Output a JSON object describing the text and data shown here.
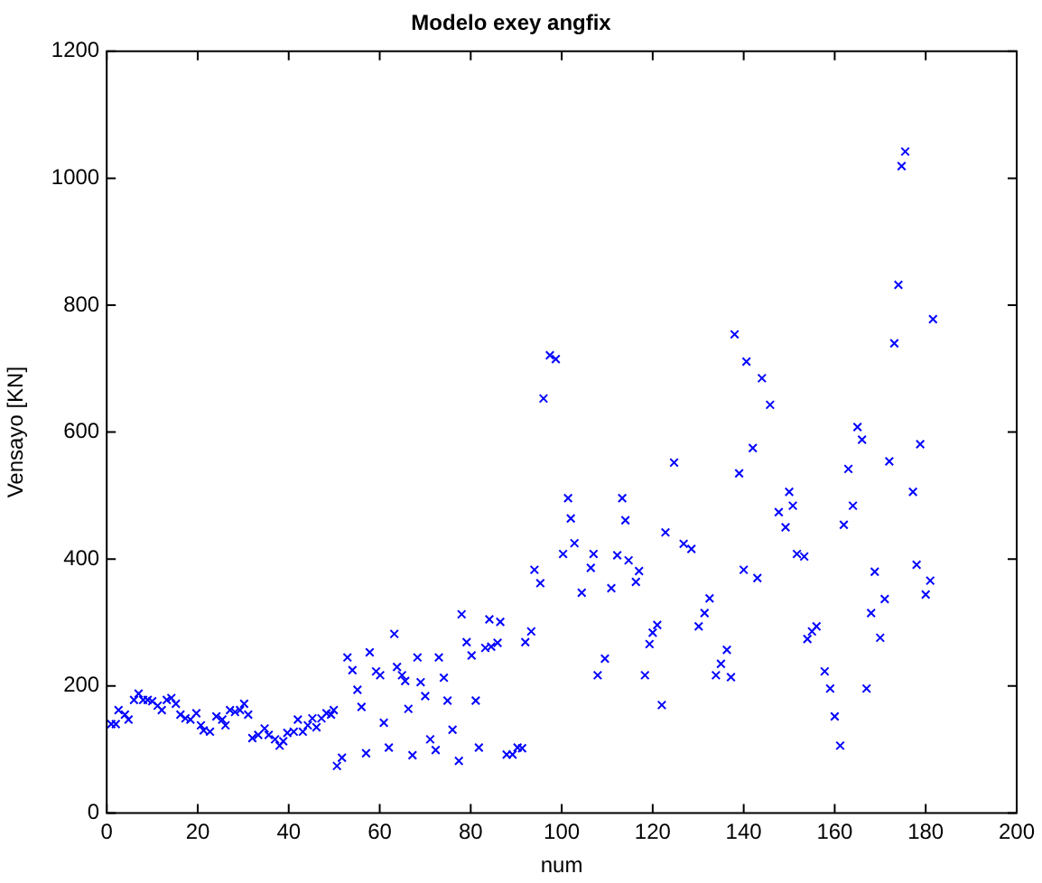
{
  "chart_data": {
    "type": "scatter",
    "title": "Modelo exey angfix",
    "xlabel": "num",
    "ylabel": "Vensayo [KN]",
    "xlim": [
      0,
      200
    ],
    "xticks": [
      0,
      20,
      40,
      60,
      80,
      100,
      120,
      140,
      160,
      180,
      200
    ],
    "ylim": [
      0,
      1200
    ],
    "yticks": [
      0,
      200,
      400,
      600,
      800,
      1000,
      1200
    ],
    "grid": false,
    "marker": "cross",
    "series": [
      {
        "color": "#0000ff",
        "x": [
          1,
          2,
          2.6,
          4,
          4.8,
          6,
          7,
          8,
          9,
          10,
          11.2,
          12.1,
          13.2,
          14.2,
          15.2,
          16.2,
          17.3,
          18.4,
          19.7,
          20.7,
          21.3,
          22.7,
          24.1,
          25.4,
          26.1,
          27.1,
          28.2,
          29.3,
          30.2,
          31.1,
          32,
          33.3,
          34.7,
          35.6,
          37,
          38,
          38.8,
          39.7,
          41.1,
          42,
          43.1,
          44.2,
          45.2,
          46.1,
          47.2,
          48.3,
          49.3,
          49.9,
          50.6,
          51.7,
          52.9,
          54,
          55.1,
          56,
          57,
          57.8,
          59.2,
          60.1,
          60.9,
          62,
          63.2,
          63.8,
          64.9,
          65.6,
          66.3,
          67.2,
          68.3,
          69,
          70,
          71.1,
          72.3,
          73,
          74.1,
          74.9,
          76,
          77.4,
          78,
          79.1,
          80.2,
          81.1,
          81.8,
          83.2,
          84.1,
          84.5,
          85.9,
          86.5,
          87.9,
          89.2,
          90.3,
          91.3,
          92,
          93.3,
          94,
          95.3,
          96,
          97.4,
          98.7,
          100.3,
          101.4,
          102,
          102.8,
          104.4,
          106.4,
          107,
          107.9,
          109.5,
          110.9,
          112.2,
          113.3,
          114,
          114.7,
          116.3,
          117,
          118.3,
          119.3,
          120,
          121,
          122,
          122.8,
          124.7,
          126.8,
          128.5,
          130.1,
          131.4,
          132.5,
          133.9,
          135,
          136.3,
          137.2,
          138,
          139,
          140,
          140.6,
          142,
          143,
          144,
          145.8,
          147.7,
          149.2,
          150,
          150.8,
          151.7,
          153.3,
          154,
          155,
          156,
          157.8,
          159,
          160,
          161.2,
          162,
          163,
          164,
          165,
          166,
          167,
          168,
          168.8,
          170,
          171,
          172,
          173.1,
          174,
          174.7,
          175.5,
          177.2,
          178,
          178.8,
          180,
          181,
          181.6
        ],
        "values": [
          140,
          140,
          162,
          155,
          147,
          178,
          188,
          178,
          178,
          176,
          169,
          162,
          178,
          181,
          172,
          155,
          149,
          147,
          157,
          138,
          130,
          128,
          152,
          147,
          138,
          162,
          159,
          162,
          172,
          155,
          118,
          123,
          133,
          123,
          116,
          106,
          113,
          126,
          128,
          147,
          128,
          138,
          149,
          135,
          149,
          157,
          155,
          162,
          74,
          87,
          245,
          225,
          194,
          167,
          94,
          253,
          223,
          217,
          142,
          103,
          282,
          230,
          217,
          208,
          164,
          91,
          245,
          206,
          184,
          116,
          99,
          245,
          213,
          177,
          131,
          82,
          313,
          269,
          248,
          177,
          103,
          260,
          305,
          262,
          268,
          301,
          92,
          92,
          103,
          102,
          269,
          286,
          383,
          362,
          653,
          721,
          715,
          408,
          496,
          464,
          425,
          347,
          386,
          408,
          217,
          243,
          354,
          406,
          496,
          461,
          398,
          364,
          381,
          217,
          266,
          284,
          296,
          170,
          442,
          552,
          424,
          416,
          294,
          315,
          338,
          217,
          235,
          257,
          214,
          754,
          535,
          383,
          711,
          575,
          370,
          685,
          643,
          474,
          450,
          506,
          484,
          408,
          404,
          274,
          286,
          294,
          223,
          196,
          152,
          106,
          454,
          542,
          484,
          608,
          588,
          196,
          315,
          380,
          276,
          337,
          554,
          740,
          832,
          1019,
          1042,
          506,
          391,
          581,
          344,
          366,
          778
        ]
      }
    ]
  }
}
